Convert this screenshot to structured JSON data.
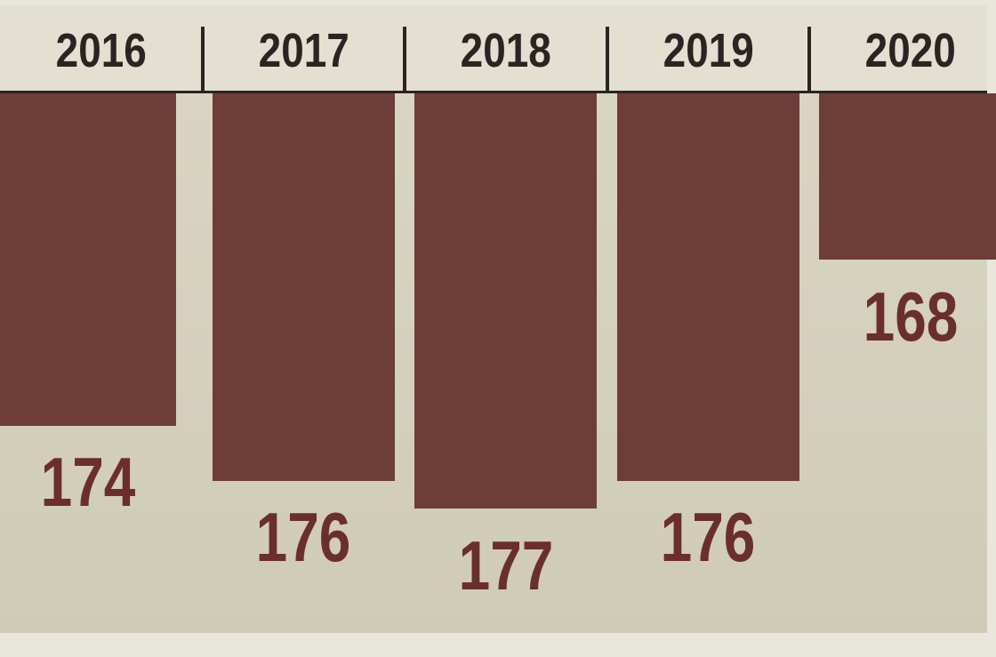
{
  "chart_data": {
    "type": "bar",
    "orientation": "vertical-downward",
    "categories": [
      "2016",
      "2017",
      "2018",
      "2019",
      "2020"
    ],
    "values": [
      174,
      176,
      177,
      176,
      168
    ],
    "title": "",
    "xlabel": "",
    "ylabel": "",
    "grid": false,
    "legend": "none",
    "colors": {
      "bar": "#6f3d37",
      "label": "#6b2f2b",
      "background": "#d6d3c0"
    }
  }
}
